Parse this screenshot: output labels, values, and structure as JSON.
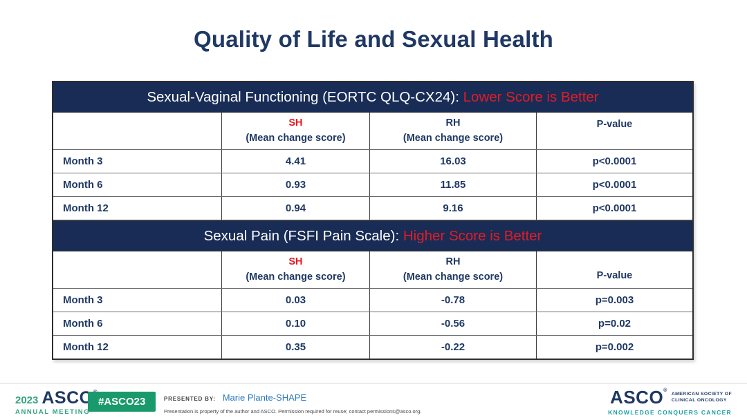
{
  "title": "Quality of Life and Sexual Health",
  "colors": {
    "navy": "#1f3864",
    "band_navy": "#182c56",
    "red": "#e51b24",
    "green": "#34a380",
    "badge_green": "#1a9a6c",
    "teal": "#1a9fa4",
    "name_blue": "#2e7bbd",
    "divider_gray": "#ececec"
  },
  "tables": [
    {
      "section_title": "Sexual-Vaginal Functioning (EORTC QLQ-CX24): ",
      "section_emphasis": "Lower Score is Better",
      "header": {
        "sh": "SH",
        "rh": "RH",
        "subline": "(Mean change score)",
        "pvalue": "P-value"
      },
      "rows": [
        {
          "label": "Month 3",
          "sh": "4.41",
          "rh": "16.03",
          "p": "p<0.0001"
        },
        {
          "label": "Month 6",
          "sh": "0.93",
          "rh": "11.85",
          "p": "p<0.0001"
        },
        {
          "label": "Month 12",
          "sh": "0.94",
          "rh": "9.16",
          "p": "p<0.0001"
        }
      ]
    },
    {
      "section_title": "Sexual Pain (FSFI Pain Scale): ",
      "section_emphasis": "Higher Score is Better",
      "header": {
        "sh": "SH",
        "rh": "RH",
        "subline": "(Mean change score)",
        "pvalue": "P-value"
      },
      "rows": [
        {
          "label": "Month 3",
          "sh": "0.03",
          "rh": "-0.78",
          "p": "p=0.003"
        },
        {
          "label": "Month 6",
          "sh": "0.10",
          "rh": "-0.56",
          "p": "p=0.02"
        },
        {
          "label": "Month 12",
          "sh": "0.35",
          "rh": "-0.22",
          "p": "p=0.002"
        }
      ]
    }
  ],
  "chart_data": {
    "type": "table",
    "title": "Quality of Life and Sexual Health",
    "tables": [
      {
        "caption": "Sexual-Vaginal Functioning (EORTC QLQ-CX24): Lower Score is Better",
        "columns": [
          "",
          "SH (Mean change score)",
          "RH (Mean change score)",
          "P-value"
        ],
        "rows": [
          [
            "Month 3",
            4.41,
            16.03,
            "p<0.0001"
          ],
          [
            "Month 6",
            0.93,
            11.85,
            "p<0.0001"
          ],
          [
            "Month 12",
            0.94,
            9.16,
            "p<0.0001"
          ]
        ]
      },
      {
        "caption": "Sexual Pain (FSFI Pain Scale): Higher Score is Better",
        "columns": [
          "",
          "SH (Mean change score)",
          "RH (Mean change score)",
          "P-value"
        ],
        "rows": [
          [
            "Month 3",
            0.03,
            -0.78,
            "p=0.003"
          ],
          [
            "Month 6",
            0.1,
            -0.56,
            "p=0.02"
          ],
          [
            "Month 12",
            0.35,
            -0.22,
            "p=0.002"
          ]
        ]
      }
    ]
  },
  "footer": {
    "year": "2023",
    "asco": "ASCO",
    "registered": "®",
    "annual_meeting": "ANNUAL MEETING",
    "hashtag": "#ASCO23",
    "presented_by_label": "PRESENTED BY:",
    "presenter": "Marie Plante-SHAPE",
    "disclaimer": "Presentation is property of the author and ASCO. Permission required for reuse; contact permissions@asco.org.",
    "society_line1": "AMERICAN SOCIETY OF",
    "society_line2": "CLINICAL ONCOLOGY",
    "tagline": "KNOWLEDGE CONQUERS CANCER"
  }
}
